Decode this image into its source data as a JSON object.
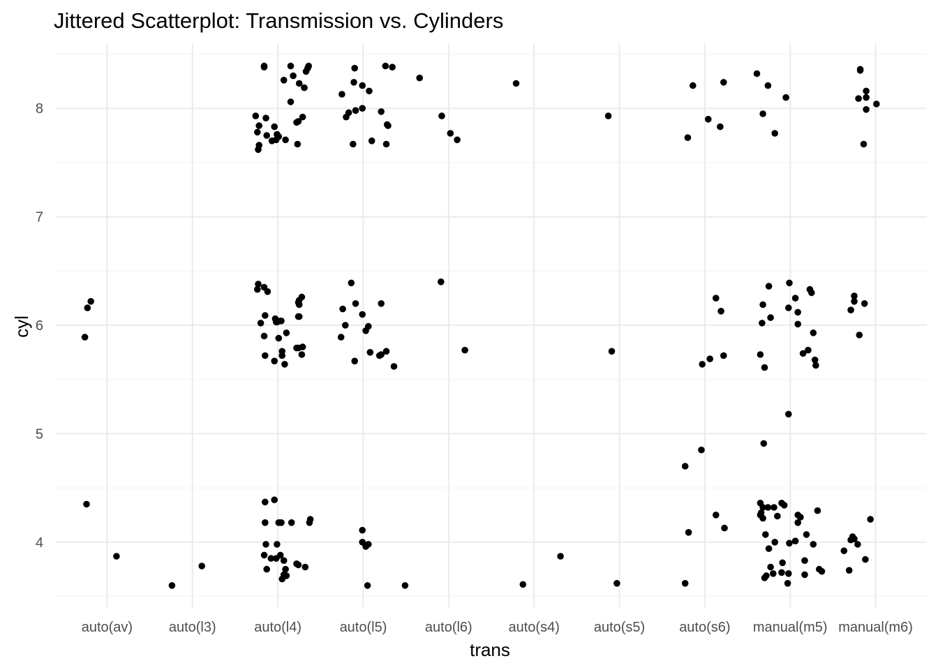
{
  "chart_data": {
    "type": "scatter",
    "title": "Jittered Scatterplot: Transmission vs. Cylinders",
    "xlabel": "trans",
    "ylabel": "cyl",
    "categories": [
      "auto(av)",
      "auto(l3)",
      "auto(l4)",
      "auto(l5)",
      "auto(l6)",
      "auto(s4)",
      "auto(s5)",
      "auto(s6)",
      "manual(m5)",
      "manual(m6)"
    ],
    "y_ticks": [
      4,
      5,
      6,
      7,
      8
    ],
    "ylim": [
      3.4,
      8.6
    ],
    "grid": true,
    "point_color": "#000000",
    "points": [
      [
        0.77,
        6.16
      ],
      [
        0.81,
        6.22
      ],
      [
        0.74,
        5.89
      ],
      [
        0.76,
        4.35
      ],
      [
        1.11,
        3.87
      ],
      [
        1.76,
        3.6
      ],
      [
        2.11,
        3.78
      ],
      [
        2.74,
        7.93
      ],
      [
        2.76,
        7.78
      ],
      [
        2.78,
        7.84
      ],
      [
        2.78,
        7.66
      ],
      [
        2.77,
        7.62
      ],
      [
        2.86,
        7.91
      ],
      [
        2.87,
        7.75
      ],
      [
        2.93,
        7.7
      ],
      [
        2.96,
        7.83
      ],
      [
        2.98,
        7.71
      ],
      [
        2.99,
        7.76
      ],
      [
        3.01,
        7.74
      ],
      [
        3.09,
        7.71
      ],
      [
        3.15,
        8.06
      ],
      [
        3.07,
        8.26
      ],
      [
        3.18,
        8.3
      ],
      [
        3.15,
        8.39
      ],
      [
        3.25,
        8.23
      ],
      [
        3.31,
        8.19
      ],
      [
        3.33,
        8.34
      ],
      [
        3.36,
        8.39
      ],
      [
        3.35,
        8.37
      ],
      [
        3.24,
        7.88
      ],
      [
        3.22,
        7.87
      ],
      [
        3.29,
        7.92
      ],
      [
        3.23,
        7.67
      ],
      [
        2.84,
        8.38
      ],
      [
        2.84,
        8.39
      ],
      [
        2.77,
        6.38
      ],
      [
        2.76,
        6.33
      ],
      [
        2.8,
        6.02
      ],
      [
        2.84,
        6.35
      ],
      [
        2.85,
        6.09
      ],
      [
        2.88,
        6.31
      ],
      [
        2.84,
        5.9
      ],
      [
        2.85,
        5.72
      ],
      [
        2.96,
        5.67
      ],
      [
        2.97,
        6.06
      ],
      [
        2.98,
        6.03
      ],
      [
        2.99,
        6.03
      ],
      [
        3.01,
        5.88
      ],
      [
        3.03,
        6.04
      ],
      [
        3.04,
        6.04
      ],
      [
        3.05,
        5.76
      ],
      [
        3.05,
        5.72
      ],
      [
        3.08,
        5.64
      ],
      [
        3.1,
        5.93
      ],
      [
        3.22,
        5.79
      ],
      [
        3.24,
        5.79
      ],
      [
        3.24,
        6.08
      ],
      [
        3.25,
        6.08
      ],
      [
        3.24,
        6.21
      ],
      [
        3.25,
        6.23
      ],
      [
        3.25,
        6.19
      ],
      [
        3.28,
        6.26
      ],
      [
        3.29,
        5.8
      ],
      [
        3.28,
        5.73
      ],
      [
        2.85,
        4.37
      ],
      [
        2.85,
        4.18
      ],
      [
        2.86,
        3.98
      ],
      [
        2.84,
        3.88
      ],
      [
        2.87,
        3.75
      ],
      [
        2.92,
        3.85
      ],
      [
        2.99,
        3.98
      ],
      [
        2.98,
        3.85
      ],
      [
        2.96,
        4.39
      ],
      [
        3.01,
        4.18
      ],
      [
        3.04,
        4.18
      ],
      [
        3.03,
        3.88
      ],
      [
        3.07,
        3.83
      ],
      [
        3.07,
        3.7
      ],
      [
        3.05,
        3.66
      ],
      [
        3.09,
        3.75
      ],
      [
        3.1,
        3.69
      ],
      [
        3.16,
        4.18
      ],
      [
        3.24,
        3.79
      ],
      [
        3.22,
        3.8
      ],
      [
        3.32,
        3.77
      ],
      [
        3.37,
        4.18
      ],
      [
        3.38,
        4.21
      ],
      [
        3.75,
        8.13
      ],
      [
        3.8,
        7.92
      ],
      [
        3.83,
        7.96
      ],
      [
        3.89,
        8.24
      ],
      [
        3.91,
        7.98
      ],
      [
        3.88,
        7.67
      ],
      [
        3.9,
        8.37
      ],
      [
        3.99,
        8.21
      ],
      [
        3.99,
        8.0
      ],
      [
        4.07,
        8.16
      ],
      [
        4.1,
        7.7
      ],
      [
        4.21,
        7.97
      ],
      [
        4.27,
        7.67
      ],
      [
        4.28,
        7.85
      ],
      [
        4.29,
        7.84
      ],
      [
        4.26,
        8.39
      ],
      [
        4.34,
        8.38
      ],
      [
        4.66,
        8.28
      ],
      [
        3.76,
        6.15
      ],
      [
        3.79,
        6.0
      ],
      [
        3.74,
        5.89
      ],
      [
        3.86,
        6.39
      ],
      [
        3.91,
        6.2
      ],
      [
        3.9,
        5.67
      ],
      [
        3.99,
        6.1
      ],
      [
        4.03,
        5.95
      ],
      [
        4.06,
        5.99
      ],
      [
        4.08,
        5.75
      ],
      [
        4.21,
        6.2
      ],
      [
        4.19,
        5.72
      ],
      [
        4.21,
        5.73
      ],
      [
        4.27,
        5.76
      ],
      [
        4.36,
        5.62
      ],
      [
        3.99,
        4.11
      ],
      [
        3.99,
        4.0
      ],
      [
        4.03,
        3.96
      ],
      [
        4.06,
        3.98
      ],
      [
        4.05,
        3.6
      ],
      [
        4.49,
        3.6
      ],
      [
        4.92,
        7.93
      ],
      [
        5.02,
        7.77
      ],
      [
        5.1,
        7.71
      ],
      [
        5.79,
        8.23
      ],
      [
        4.91,
        6.4
      ],
      [
        5.19,
        5.77
      ],
      [
        5.87,
        3.61
      ],
      [
        6.31,
        3.87
      ],
      [
        6.87,
        7.93
      ],
      [
        6.91,
        5.76
      ],
      [
        6.97,
        3.62
      ],
      [
        7.8,
        7.73
      ],
      [
        7.86,
        8.21
      ],
      [
        8.04,
        7.9
      ],
      [
        8.18,
        7.83
      ],
      [
        8.22,
        8.24
      ],
      [
        8.13,
        6.25
      ],
      [
        8.19,
        6.13
      ],
      [
        7.97,
        5.64
      ],
      [
        8.06,
        5.69
      ],
      [
        8.22,
        5.72
      ],
      [
        7.77,
        4.7
      ],
      [
        7.96,
        4.85
      ],
      [
        7.81,
        4.09
      ],
      [
        8.13,
        4.25
      ],
      [
        8.23,
        4.13
      ],
      [
        7.77,
        3.62
      ],
      [
        8.61,
        8.32
      ],
      [
        8.68,
        7.95
      ],
      [
        8.74,
        8.21
      ],
      [
        8.95,
        8.1
      ],
      [
        8.82,
        7.77
      ],
      [
        8.67,
        6.02
      ],
      [
        8.68,
        6.19
      ],
      [
        8.75,
        6.36
      ],
      [
        8.77,
        6.07
      ],
      [
        8.65,
        5.73
      ],
      [
        8.7,
        5.61
      ],
      [
        8.98,
        6.16
      ],
      [
        8.99,
        6.39
      ],
      [
        9.06,
        6.25
      ],
      [
        9.09,
        6.12
      ],
      [
        9.09,
        6.01
      ],
      [
        9.15,
        5.74
      ],
      [
        9.21,
        5.77
      ],
      [
        9.23,
        6.33
      ],
      [
        9.25,
        6.3
      ],
      [
        9.27,
        5.93
      ],
      [
        9.29,
        5.68
      ],
      [
        9.3,
        5.63
      ],
      [
        8.69,
        4.91
      ],
      [
        8.98,
        5.18
      ],
      [
        8.65,
        4.25
      ],
      [
        8.65,
        4.36
      ],
      [
        8.68,
        4.32
      ],
      [
        8.66,
        4.27
      ],
      [
        8.68,
        4.22
      ],
      [
        8.71,
        4.07
      ],
      [
        8.75,
        3.94
      ],
      [
        8.77,
        3.77
      ],
      [
        8.82,
        4.0
      ],
      [
        8.8,
        3.71
      ],
      [
        8.72,
        3.69
      ],
      [
        8.7,
        3.67
      ],
      [
        8.74,
        4.32
      ],
      [
        8.81,
        4.32
      ],
      [
        8.85,
        4.24
      ],
      [
        8.9,
        4.36
      ],
      [
        8.93,
        4.34
      ],
      [
        8.91,
        3.81
      ],
      [
        8.9,
        3.72
      ],
      [
        8.97,
        3.62
      ],
      [
        8.99,
        3.99
      ],
      [
        8.98,
        3.71
      ],
      [
        9.06,
        4.01
      ],
      [
        9.09,
        4.25
      ],
      [
        9.09,
        4.18
      ],
      [
        9.12,
        4.23
      ],
      [
        9.17,
        3.83
      ],
      [
        9.17,
        3.7
      ],
      [
        9.19,
        4.07
      ],
      [
        9.27,
        3.98
      ],
      [
        9.32,
        4.29
      ],
      [
        9.34,
        3.75
      ],
      [
        9.37,
        3.73
      ],
      [
        9.86,
        7.67
      ],
      [
        9.8,
        8.09
      ],
      [
        9.82,
        8.36
      ],
      [
        9.82,
        8.35
      ],
      [
        9.89,
        7.99
      ],
      [
        9.89,
        8.16
      ],
      [
        9.89,
        8.1
      ],
      [
        10.01,
        8.04
      ],
      [
        9.87,
        6.2
      ],
      [
        9.81,
        5.91
      ],
      [
        9.75,
        6.22
      ],
      [
        9.71,
        6.14
      ],
      [
        9.75,
        6.27
      ],
      [
        9.88,
        3.84
      ],
      [
        9.94,
        4.21
      ],
      [
        9.75,
        4.03
      ],
      [
        9.71,
        4.02
      ],
      [
        9.69,
        3.74
      ],
      [
        9.63,
        3.92
      ],
      [
        9.79,
        3.98
      ],
      [
        9.73,
        4.05
      ]
    ]
  }
}
